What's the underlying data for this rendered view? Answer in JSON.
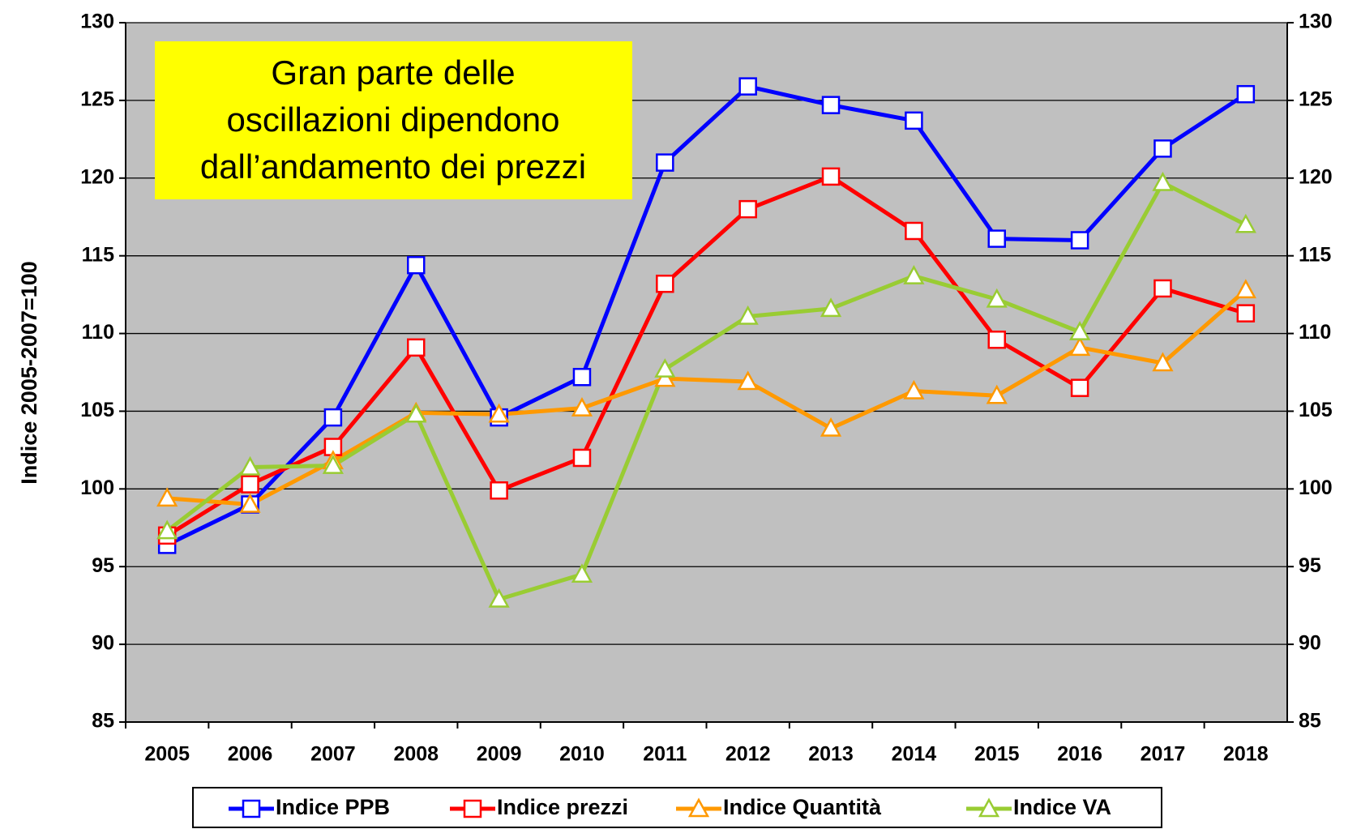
{
  "chart_data": {
    "type": "line",
    "ylabel": "Indice 2005-2007=100",
    "annotation": [
      "Gran parte delle",
      "oscillazioni dipendono",
      "dall’andamento dei prezzi"
    ],
    "categories": [
      "2005",
      "2006",
      "2007",
      "2008",
      "2009",
      "2010",
      "2011",
      "2012",
      "2013",
      "2014",
      "2015",
      "2016",
      "2017",
      "2018"
    ],
    "series": [
      {
        "name": "Indice PPB",
        "color": "#0000ff",
        "marker": "square",
        "values": [
          96.4,
          99.0,
          104.6,
          114.4,
          104.6,
          107.2,
          121.0,
          125.9,
          124.7,
          123.7,
          116.1,
          116.0,
          121.9,
          125.4
        ]
      },
      {
        "name": "Indice prezzi",
        "color": "#ff0000",
        "marker": "square",
        "values": [
          97.0,
          100.3,
          102.7,
          109.1,
          99.9,
          102.0,
          113.2,
          118.0,
          120.1,
          116.6,
          109.6,
          106.5,
          112.9,
          111.3
        ]
      },
      {
        "name": "Indice Quantità",
        "color": "#ff9900",
        "marker": "triangle",
        "values": [
          99.4,
          99.0,
          101.8,
          104.9,
          104.8,
          105.2,
          107.1,
          106.9,
          103.9,
          106.3,
          106.0,
          109.1,
          108.1,
          112.8
        ]
      },
      {
        "name": "Indice VA",
        "color": "#99cc33",
        "marker": "triangle",
        "values": [
          97.3,
          101.4,
          101.5,
          104.8,
          92.9,
          94.5,
          107.7,
          111.1,
          111.6,
          113.7,
          112.2,
          110.1,
          119.7,
          117.0
        ]
      }
    ],
    "ylim": [
      85,
      130
    ],
    "yticks": [
      85,
      90,
      95,
      100,
      105,
      110,
      115,
      120,
      125,
      130
    ],
    "y2lim": [
      85,
      130
    ],
    "y2ticks": [
      85,
      90,
      95,
      100,
      105,
      110,
      115,
      120,
      125,
      130
    ],
    "grid": true,
    "legend": "bottom"
  }
}
